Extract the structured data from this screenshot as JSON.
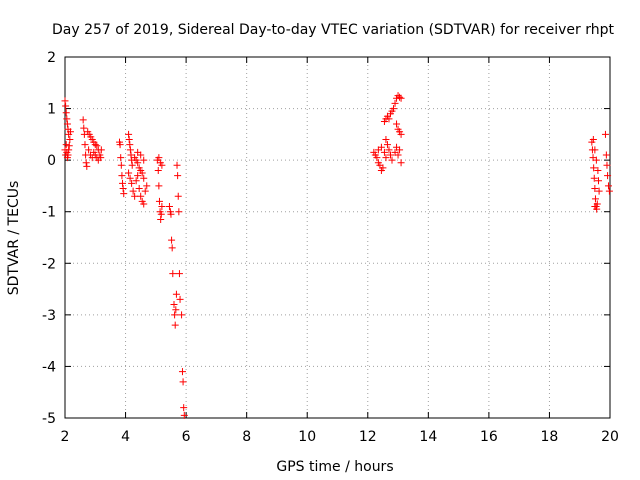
{
  "chart_data": {
    "type": "scatter",
    "title": "Day 257 of 2019, Sidereal Day-to-day VTEC variation (SDTVAR) for receiver rhpt",
    "xlabel": "GPS time / hours",
    "ylabel": "SDTVAR / TECUs",
    "xlim": [
      2,
      20
    ],
    "ylim": [
      -5,
      2
    ],
    "xticks": [
      2,
      4,
      6,
      8,
      10,
      12,
      14,
      16,
      18,
      20
    ],
    "yticks": [
      -5,
      -4,
      -3,
      -2,
      -1,
      0,
      1,
      2
    ],
    "xtick_labels": [
      "2",
      "4",
      "6",
      "8",
      "10",
      "12",
      "14",
      "16",
      "18",
      "20"
    ],
    "ytick_labels": [
      "-5",
      "-4",
      "-3",
      "-2",
      "-1",
      "0",
      "1",
      "2"
    ],
    "grid": true,
    "legend": false,
    "marker": "+",
    "color": "#ff0000",
    "series": [
      {
        "name": "SDTVAR",
        "points": [
          [
            2.0,
            1.15
          ],
          [
            2.02,
            1.05
          ],
          [
            2.04,
            0.92
          ],
          [
            2.06,
            0.8
          ],
          [
            2.08,
            0.7
          ],
          [
            2.1,
            0.6
          ],
          [
            2.12,
            0.5
          ],
          [
            2.04,
            0.3
          ],
          [
            2.06,
            0.15
          ],
          [
            2.08,
            0.05
          ],
          [
            2.1,
            0.1
          ],
          [
            2.12,
            0.2
          ],
          [
            2.14,
            0.28
          ],
          [
            2.16,
            0.4
          ],
          [
            2.18,
            0.55
          ],
          [
            2.0,
            0.2
          ],
          [
            2.02,
            0.1
          ],
          [
            2.6,
            0.78
          ],
          [
            2.62,
            0.62
          ],
          [
            2.64,
            0.5
          ],
          [
            2.66,
            0.3
          ],
          [
            2.68,
            0.1
          ],
          [
            2.7,
            -0.05
          ],
          [
            2.72,
            -0.12
          ],
          [
            2.75,
            0.55
          ],
          [
            2.8,
            0.5
          ],
          [
            2.85,
            0.45
          ],
          [
            2.9,
            0.4
          ],
          [
            2.95,
            0.35
          ],
          [
            3.0,
            0.3
          ],
          [
            3.05,
            0.28
          ],
          [
            3.1,
            0.2
          ],
          [
            2.78,
            0.2
          ],
          [
            2.84,
            0.1
          ],
          [
            2.9,
            0.05
          ],
          [
            2.95,
            0.15
          ],
          [
            3.0,
            0.1
          ],
          [
            3.05,
            0.05
          ],
          [
            3.1,
            0.0
          ],
          [
            3.15,
            0.1
          ],
          [
            3.18,
            0.05
          ],
          [
            3.2,
            0.2
          ],
          [
            3.8,
            0.35
          ],
          [
            3.82,
            0.3
          ],
          [
            3.84,
            0.05
          ],
          [
            3.86,
            -0.1
          ],
          [
            3.88,
            -0.3
          ],
          [
            3.9,
            -0.45
          ],
          [
            3.92,
            -0.55
          ],
          [
            3.94,
            -0.65
          ],
          [
            4.1,
            0.5
          ],
          [
            4.12,
            0.4
          ],
          [
            4.14,
            0.3
          ],
          [
            4.16,
            0.2
          ],
          [
            4.18,
            0.1
          ],
          [
            4.2,
            0.0
          ],
          [
            4.22,
            -0.1
          ],
          [
            4.1,
            -0.25
          ],
          [
            4.15,
            -0.35
          ],
          [
            4.2,
            -0.45
          ],
          [
            4.25,
            -0.6
          ],
          [
            4.3,
            -0.7
          ],
          [
            4.35,
            -0.4
          ],
          [
            4.4,
            -0.3
          ],
          [
            4.3,
            0.05
          ],
          [
            4.35,
            0.0
          ],
          [
            4.4,
            -0.05
          ],
          [
            4.45,
            -0.15
          ],
          [
            4.5,
            -0.2
          ],
          [
            4.55,
            -0.25
          ],
          [
            4.6,
            -0.35
          ],
          [
            4.45,
            -0.55
          ],
          [
            4.5,
            -0.7
          ],
          [
            4.55,
            -0.8
          ],
          [
            4.6,
            -0.85
          ],
          [
            4.65,
            -0.6
          ],
          [
            4.7,
            -0.5
          ],
          [
            4.4,
            0.15
          ],
          [
            4.5,
            0.1
          ],
          [
            4.6,
            0.0
          ],
          [
            5.05,
            0.0
          ],
          [
            5.08,
            -0.2
          ],
          [
            5.1,
            -0.5
          ],
          [
            5.12,
            -0.8
          ],
          [
            5.14,
            -1.0
          ],
          [
            5.16,
            -1.15
          ],
          [
            5.18,
            -1.05
          ],
          [
            5.2,
            -0.9
          ],
          [
            5.1,
            0.05
          ],
          [
            5.15,
            -0.05
          ],
          [
            5.2,
            -0.1
          ],
          [
            5.45,
            -0.9
          ],
          [
            5.48,
            -1.0
          ],
          [
            5.5,
            -1.05
          ],
          [
            5.52,
            -1.55
          ],
          [
            5.54,
            -1.7
          ],
          [
            5.56,
            -2.2
          ],
          [
            5.6,
            -2.8
          ],
          [
            5.62,
            -3.0
          ],
          [
            5.64,
            -3.2
          ],
          [
            5.66,
            -2.9
          ],
          [
            5.68,
            -2.6
          ],
          [
            5.7,
            -0.1
          ],
          [
            5.72,
            -0.3
          ],
          [
            5.74,
            -0.7
          ],
          [
            5.76,
            -1.0
          ],
          [
            5.78,
            -2.2
          ],
          [
            5.8,
            -2.7
          ],
          [
            5.85,
            -3.0
          ],
          [
            5.88,
            -4.1
          ],
          [
            5.9,
            -4.3
          ],
          [
            5.92,
            -4.8
          ],
          [
            5.94,
            -4.95
          ],
          [
            12.2,
            0.15
          ],
          [
            12.25,
            0.1
          ],
          [
            12.3,
            0.05
          ],
          [
            12.35,
            -0.05
          ],
          [
            12.4,
            -0.1
          ],
          [
            12.45,
            -0.2
          ],
          [
            12.5,
            -0.15
          ],
          [
            12.35,
            0.2
          ],
          [
            12.45,
            0.25
          ],
          [
            12.55,
            0.15
          ],
          [
            12.6,
            0.05
          ],
          [
            12.55,
            0.75
          ],
          [
            12.6,
            0.8
          ],
          [
            12.65,
            0.85
          ],
          [
            12.7,
            0.8
          ],
          [
            12.75,
            0.9
          ],
          [
            12.8,
            0.95
          ],
          [
            12.6,
            0.4
          ],
          [
            12.65,
            0.3
          ],
          [
            12.7,
            0.2
          ],
          [
            12.75,
            0.1
          ],
          [
            12.8,
            0.0
          ],
          [
            12.85,
            1.0
          ],
          [
            12.9,
            1.1
          ],
          [
            12.95,
            1.2
          ],
          [
            13.0,
            1.25
          ],
          [
            13.05,
            1.22
          ],
          [
            13.1,
            1.2
          ],
          [
            12.95,
            0.7
          ],
          [
            13.0,
            0.6
          ],
          [
            13.05,
            0.55
          ],
          [
            13.1,
            0.5
          ],
          [
            12.9,
            0.15
          ],
          [
            12.95,
            0.25
          ],
          [
            13.0,
            0.1
          ],
          [
            13.05,
            0.2
          ],
          [
            13.1,
            -0.05
          ],
          [
            19.4,
            0.35
          ],
          [
            19.42,
            0.2
          ],
          [
            19.44,
            0.05
          ],
          [
            19.46,
            -0.15
          ],
          [
            19.48,
            -0.35
          ],
          [
            19.5,
            -0.55
          ],
          [
            19.52,
            -0.75
          ],
          [
            19.54,
            -0.9
          ],
          [
            19.56,
            -0.95
          ],
          [
            19.45,
            0.4
          ],
          [
            19.5,
            0.2
          ],
          [
            19.55,
            0.0
          ],
          [
            19.6,
            -0.2
          ],
          [
            19.62,
            -0.4
          ],
          [
            19.64,
            -0.6
          ],
          [
            19.5,
            -0.9
          ],
          [
            19.58,
            -0.85
          ],
          [
            19.85,
            0.5
          ],
          [
            19.88,
            0.1
          ],
          [
            19.9,
            -0.1
          ],
          [
            19.92,
            -0.3
          ],
          [
            19.95,
            -0.5
          ],
          [
            19.98,
            -0.6
          ]
        ]
      }
    ]
  }
}
